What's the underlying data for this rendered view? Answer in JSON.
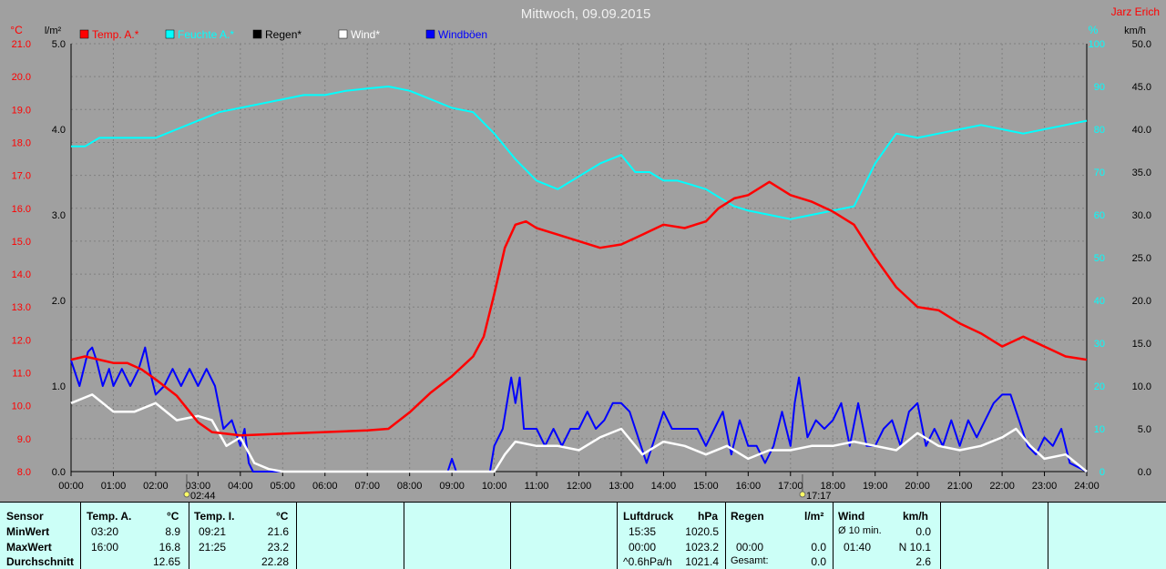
{
  "title": "Mittwoch, 09.09.2015",
  "author": "Jarz Erich",
  "unit_labels": {
    "left_temp": "°C",
    "left_rain": "l/m²",
    "right_hum": "%",
    "right_wind": "km/h"
  },
  "chart_data": {
    "type": "line",
    "x_labels": [
      "00:00",
      "01:00",
      "02:00",
      "03:00",
      "04:00",
      "05:00",
      "06:00",
      "07:00",
      "08:00",
      "09:00",
      "10:00",
      "11:00",
      "12:00",
      "13:00",
      "14:00",
      "15:00",
      "16:00",
      "17:00",
      "18:00",
      "19:00",
      "20:00",
      "21:00",
      "22:00",
      "23:00",
      "24:00"
    ],
    "xlim": [
      0,
      24
    ],
    "axes": {
      "temp": {
        "ylim": [
          8,
          21
        ],
        "ticks": [
          "8.0",
          "9.0",
          "10.0",
          "11.0",
          "12.0",
          "13.0",
          "14.0",
          "15.0",
          "16.0",
          "17.0",
          "18.0",
          "19.0",
          "20.0",
          "21.0"
        ],
        "color": "#ff0000"
      },
      "rain": {
        "ylim": [
          0,
          5
        ],
        "ticks": [
          "0.0",
          "1.0",
          "2.0",
          "3.0",
          "4.0",
          "5.0"
        ],
        "color": "#000000"
      },
      "humidity": {
        "ylim": [
          0,
          100
        ],
        "ticks": [
          "0",
          "10",
          "20",
          "30",
          "40",
          "50",
          "60",
          "70",
          "80",
          "90",
          "100"
        ],
        "color": "#00ffff"
      },
      "wind": {
        "ylim": [
          0,
          50
        ],
        "ticks": [
          "0.0",
          "5.0",
          "10.0",
          "15.0",
          "20.0",
          "25.0",
          "30.0",
          "35.0",
          "40.0",
          "45.0",
          "50.0"
        ],
        "color": "#000000"
      }
    },
    "legend": [
      {
        "label": "Temp. A.*",
        "color": "#ff0000"
      },
      {
        "label": "Feuchte A.*",
        "color": "#00ffff"
      },
      {
        "label": "Regen*",
        "color": "#000000"
      },
      {
        "label": "Wind*",
        "color": "#ffffff"
      },
      {
        "label": "Windböen",
        "color": "#0000ff"
      }
    ],
    "sun_markers": [
      {
        "time": "02:44"
      },
      {
        "time": "17:17"
      }
    ],
    "series": [
      {
        "name": "Temp. A.*",
        "axis": "temp",
        "color": "#ff0000",
        "x": [
          0,
          0.33,
          0.67,
          1,
          1.33,
          1.67,
          2,
          2.5,
          3,
          3.33,
          4,
          5,
          6,
          7,
          7.5,
          8,
          8.5,
          9,
          9.5,
          9.75,
          10,
          10.25,
          10.5,
          10.75,
          11,
          11.5,
          12,
          12.5,
          13,
          13.5,
          14,
          14.5,
          15,
          15.3,
          15.67,
          16,
          16.5,
          17,
          17.5,
          18,
          18.5,
          19,
          19.5,
          20,
          20.5,
          21,
          21.5,
          22,
          22.5,
          23,
          23.5,
          24
        ],
        "y": [
          11.4,
          11.5,
          11.4,
          11.3,
          11.3,
          11.1,
          10.8,
          10.3,
          9.5,
          9.2,
          9.1,
          9.15,
          9.2,
          9.25,
          9.3,
          9.8,
          10.4,
          10.9,
          11.5,
          12.1,
          13.4,
          14.8,
          15.5,
          15.6,
          15.4,
          15.2,
          15.0,
          14.8,
          14.9,
          15.2,
          15.5,
          15.4,
          15.6,
          16.0,
          16.3,
          16.4,
          16.8,
          16.4,
          16.2,
          15.9,
          15.5,
          14.5,
          13.6,
          13.0,
          12.9,
          12.5,
          12.2,
          11.8,
          12.1,
          11.8,
          11.5,
          11.4
        ]
      },
      {
        "name": "Feuchte A.*",
        "axis": "humidity",
        "color": "#00ffff",
        "x": [
          0,
          0.33,
          0.67,
          1,
          1.5,
          2,
          2.5,
          3,
          3.5,
          4,
          4.5,
          5,
          5.5,
          6,
          6.5,
          7,
          7.5,
          8,
          8.5,
          9,
          9.5,
          10,
          10.5,
          11,
          11.5,
          12,
          12.5,
          13,
          13.33,
          13.67,
          14,
          14.33,
          14.67,
          15,
          15.33,
          15.67,
          16,
          16.5,
          17,
          17.5,
          18,
          18.5,
          19,
          19.5,
          20,
          20.5,
          21,
          21.5,
          22,
          22.5,
          23,
          23.5,
          24
        ],
        "y": [
          76,
          76,
          78,
          78,
          78,
          78,
          80,
          82,
          84,
          85,
          86,
          87,
          88,
          88,
          89,
          89.5,
          90,
          89,
          87,
          85,
          84,
          79,
          73,
          68,
          66,
          69,
          72,
          74,
          70,
          70,
          68,
          68,
          67,
          66,
          64,
          62,
          61,
          60,
          59,
          60,
          61,
          62,
          72,
          79,
          78,
          79,
          80,
          81,
          80,
          79,
          80,
          81,
          82
        ]
      },
      {
        "name": "Wind*",
        "axis": "wind",
        "color": "#ffffff",
        "x": [
          0,
          0.5,
          1,
          1.5,
          2,
          2.5,
          3,
          3.33,
          3.67,
          4,
          4.33,
          4.67,
          5,
          5.5,
          6,
          8,
          9,
          9.5,
          10,
          10.25,
          10.5,
          11,
          11.5,
          12,
          12.5,
          13,
          13.5,
          14,
          14.5,
          15,
          15.5,
          16,
          16.5,
          17,
          17.5,
          18,
          18.5,
          19,
          19.5,
          20,
          20.5,
          21,
          21.5,
          22,
          22.33,
          22.67,
          23,
          23.5,
          24
        ],
        "y": [
          8,
          9,
          7,
          7,
          8,
          6,
          6.5,
          6,
          3,
          4,
          1,
          0.3,
          0,
          0,
          0,
          0,
          0,
          0,
          0,
          2,
          3.5,
          3,
          3,
          2.5,
          4,
          5,
          2,
          3.5,
          3,
          2,
          3,
          1.5,
          2.5,
          2.5,
          3,
          3,
          3.5,
          3,
          2.5,
          4.5,
          3,
          2.5,
          3,
          4,
          5,
          3,
          1.5,
          2,
          0
        ]
      },
      {
        "name": "Windböen",
        "axis": "wind",
        "color": "#0000ff",
        "x": [
          0,
          0.2,
          0.4,
          0.5,
          0.6,
          0.75,
          0.9,
          1,
          1.2,
          1.4,
          1.6,
          1.75,
          1.85,
          2,
          2.2,
          2.4,
          2.6,
          2.8,
          3,
          3.2,
          3.4,
          3.6,
          3.8,
          4,
          4.1,
          4.2,
          4.3,
          4.4,
          4.6,
          5,
          6,
          7,
          8,
          8.9,
          9,
          9.1,
          9.2,
          9.5,
          9.8,
          9.9,
          10,
          10.2,
          10.3,
          10.4,
          10.5,
          10.6,
          10.7,
          10.8,
          11,
          11.2,
          11.4,
          11.6,
          11.8,
          12,
          12.2,
          12.4,
          12.6,
          12.8,
          13,
          13.2,
          13.4,
          13.6,
          13.8,
          14,
          14.2,
          14.4,
          14.6,
          14.8,
          15,
          15.2,
          15.4,
          15.6,
          15.8,
          16,
          16.2,
          16.4,
          16.6,
          16.8,
          17,
          17.1,
          17.2,
          17.4,
          17.6,
          17.8,
          18,
          18.2,
          18.4,
          18.6,
          18.8,
          19,
          19.2,
          19.4,
          19.6,
          19.8,
          20,
          20.2,
          20.4,
          20.6,
          20.8,
          21,
          21.2,
          21.4,
          21.6,
          21.8,
          22,
          22.2,
          22.4,
          22.6,
          22.8,
          23,
          23.2,
          23.4,
          23.6,
          24
        ],
        "y": [
          13,
          10,
          14,
          14.5,
          13,
          10,
          12,
          10,
          12,
          10,
          12,
          14.5,
          12,
          9,
          10,
          12,
          10,
          12,
          10,
          12,
          10,
          5,
          6,
          3,
          5,
          1,
          0,
          0,
          0,
          0,
          0,
          0,
          0,
          0,
          1.5,
          0,
          0,
          0,
          0,
          0,
          3,
          5,
          8,
          11,
          8,
          11,
          5,
          5,
          5,
          3,
          5,
          3,
          5,
          5,
          7,
          5,
          6,
          8,
          8,
          7,
          4,
          1,
          4,
          7,
          5,
          5,
          5,
          5,
          3,
          5,
          7,
          2,
          6,
          3,
          3,
          1,
          3,
          7,
          3,
          8,
          11,
          4,
          6,
          5,
          6,
          8,
          3,
          8,
          3,
          3,
          5,
          6,
          3,
          7,
          8,
          3,
          5,
          3,
          6,
          3,
          6,
          4,
          6,
          8,
          9,
          9,
          6,
          3,
          2,
          4,
          3,
          5,
          1,
          0
        ]
      }
    ]
  },
  "table": {
    "sensor": {
      "header": "Sensor",
      "rows": [
        "MinWert",
        "MaxWert",
        "Durchschnitt"
      ]
    },
    "temp_a": {
      "header": "Temp. A.",
      "unit": "°C",
      "rows": [
        [
          "03:20",
          "8.9"
        ],
        [
          "16:00",
          "16.8"
        ],
        [
          "",
          "12.65"
        ]
      ]
    },
    "temp_i": {
      "header": "Temp. I.",
      "unit": "°C",
      "rows": [
        [
          "09:21",
          "21.6"
        ],
        [
          "21:25",
          "23.2"
        ],
        [
          "",
          "22.28"
        ]
      ]
    },
    "pressure": {
      "header": "Luftdruck",
      "unit": "hPa",
      "rows": [
        [
          "15:35",
          "1020.5"
        ],
        [
          "00:00",
          "1023.2"
        ],
        [
          "^0.6hPa/h",
          "1021.4"
        ]
      ]
    },
    "rain": {
      "header": "Regen",
      "unit": "l/m²",
      "rows": [
        [
          "",
          ""
        ],
        [
          "00:00",
          "0.0"
        ],
        [
          "Gesamt:",
          "0.0"
        ]
      ]
    },
    "wind": {
      "header": "Wind",
      "unit": "km/h",
      "rows": [
        [
          "Ø 10 min.",
          "0.0"
        ],
        [
          "01:40",
          "N 10.1"
        ],
        [
          "",
          "2.6"
        ]
      ]
    }
  }
}
